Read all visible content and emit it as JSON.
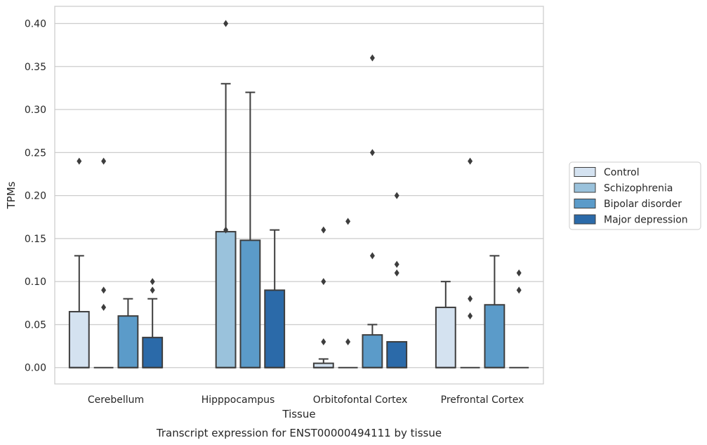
{
  "chart_data": {
    "type": "boxplot",
    "xlabel": "Tissue",
    "ylabel": "TPMs",
    "caption": "Transcript expression for ENST00000494111 by tissue",
    "categories": [
      "Cerebellum",
      "Hipppocampus",
      "Orbitofontal Cortex",
      "Prefrontal Cortex"
    ],
    "ylim": [
      -0.019,
      0.42
    ],
    "yticks": [
      0.0,
      0.05,
      0.1,
      0.15,
      0.2,
      0.25,
      0.3,
      0.35,
      0.4
    ],
    "ytick_labels": [
      "0.00",
      "0.05",
      "0.10",
      "0.15",
      "0.20",
      "0.25",
      "0.30",
      "0.35",
      "0.40"
    ],
    "grid": "horizontal",
    "legend_position": "right",
    "series": [
      {
        "name": "Control",
        "color": "#d4e2f0",
        "boxes": [
          {
            "q1": 0.0,
            "median": 0.0,
            "q3": 0.065,
            "whisker_low": 0.0,
            "whisker_high": 0.13,
            "outliers": [
              0.24
            ]
          },
          null,
          {
            "q1": 0.0,
            "median": 0.0,
            "q3": 0.005,
            "whisker_low": 0.0,
            "whisker_high": 0.01,
            "outliers": [
              0.03,
              0.1,
              0.16
            ]
          },
          {
            "q1": 0.0,
            "median": 0.0,
            "q3": 0.07,
            "whisker_low": 0.0,
            "whisker_high": 0.1,
            "outliers": []
          }
        ]
      },
      {
        "name": "Schizophrenia",
        "color": "#9ac2dc",
        "boxes": [
          {
            "q1": 0.0,
            "median": 0.0,
            "q3": 0.0,
            "whisker_low": 0.0,
            "whisker_high": 0.0,
            "outliers": [
              0.07,
              0.09,
              0.24
            ]
          },
          {
            "q1": 0.0,
            "median": 0.0,
            "q3": 0.158,
            "whisker_low": 0.0,
            "whisker_high": 0.33,
            "outliers": [
              0.16,
              0.4
            ]
          },
          {
            "q1": 0.0,
            "median": 0.0,
            "q3": 0.0,
            "whisker_low": 0.0,
            "whisker_high": 0.0,
            "outliers": [
              0.03,
              0.17
            ]
          },
          {
            "q1": 0.0,
            "median": 0.0,
            "q3": 0.0,
            "whisker_low": 0.0,
            "whisker_high": 0.0,
            "outliers": [
              0.06,
              0.08,
              0.24
            ]
          }
        ]
      },
      {
        "name": "Bipolar disorder",
        "color": "#5b9bc9",
        "boxes": [
          {
            "q1": 0.0,
            "median": 0.0,
            "q3": 0.06,
            "whisker_low": 0.0,
            "whisker_high": 0.08,
            "outliers": []
          },
          {
            "q1": 0.0,
            "median": 0.0,
            "q3": 0.148,
            "whisker_low": 0.0,
            "whisker_high": 0.32,
            "outliers": []
          },
          {
            "q1": 0.0,
            "median": 0.0,
            "q3": 0.038,
            "whisker_low": 0.0,
            "whisker_high": 0.05,
            "outliers": [
              0.13,
              0.25,
              0.36
            ]
          },
          {
            "q1": 0.0,
            "median": 0.0,
            "q3": 0.073,
            "whisker_low": 0.0,
            "whisker_high": 0.13,
            "outliers": []
          }
        ]
      },
      {
        "name": "Major depression",
        "color": "#2b6aa9",
        "boxes": [
          {
            "q1": 0.0,
            "median": 0.0,
            "q3": 0.035,
            "whisker_low": 0.0,
            "whisker_high": 0.08,
            "outliers": [
              0.09,
              0.1
            ]
          },
          {
            "q1": 0.0,
            "median": 0.0,
            "q3": 0.09,
            "whisker_low": 0.0,
            "whisker_high": 0.16,
            "outliers": []
          },
          {
            "q1": 0.0,
            "median": 0.0,
            "q3": 0.03,
            "whisker_low": 0.0,
            "whisker_high": 0.03,
            "outliers": [
              0.11,
              0.12,
              0.2
            ]
          },
          {
            "q1": 0.0,
            "median": 0.0,
            "q3": 0.0,
            "whisker_low": 0.0,
            "whisker_high": 0.0,
            "outliers": [
              0.09,
              0.11
            ]
          }
        ]
      }
    ]
  }
}
